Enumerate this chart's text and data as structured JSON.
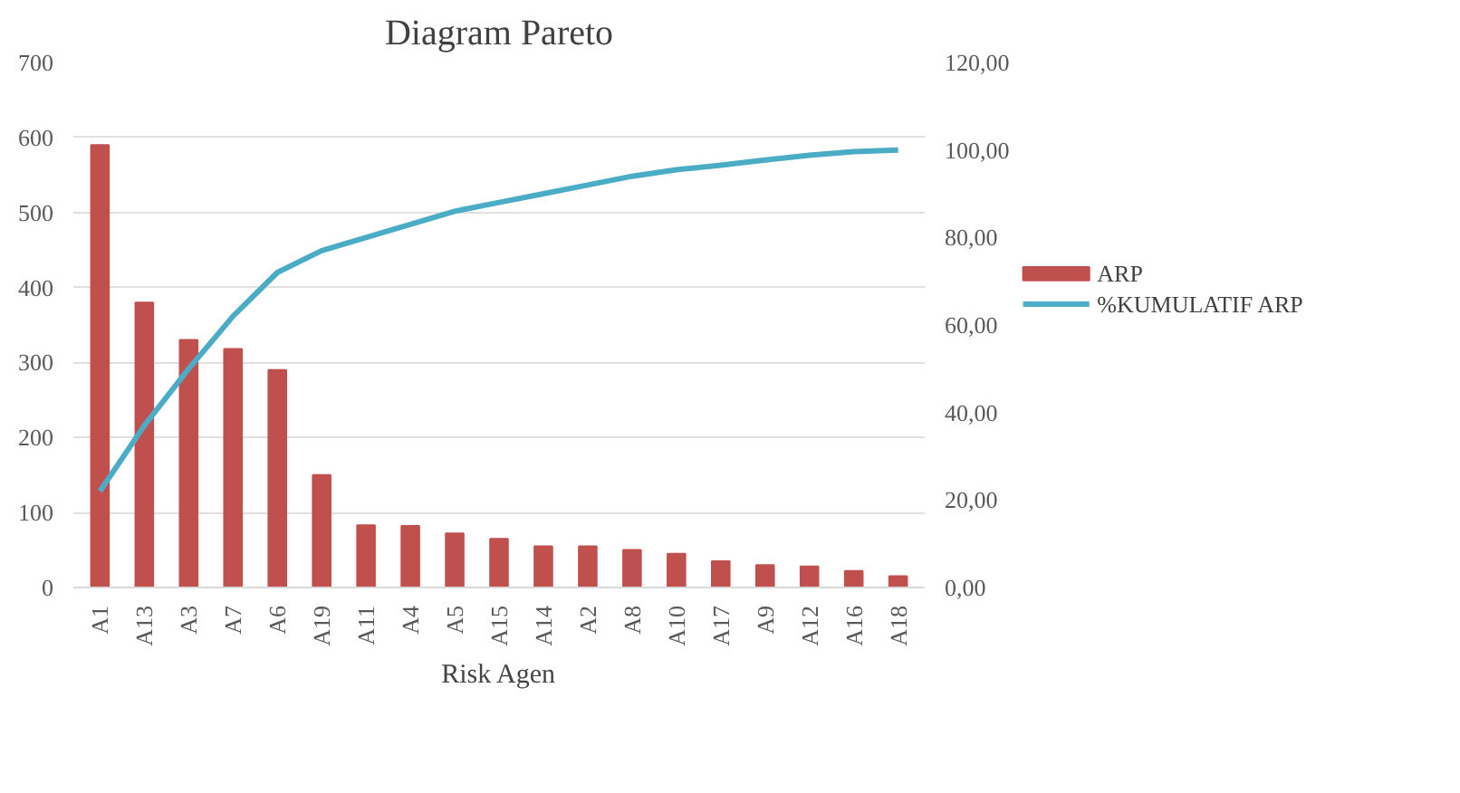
{
  "chart_data": {
    "type": "bar",
    "title": "Diagram Pareto",
    "xlabel": "Risk Agen",
    "categories": [
      "A1",
      "A13",
      "A3",
      "A7",
      "A6",
      "A19",
      "A11",
      "A4",
      "A5",
      "A15",
      "A14",
      "A2",
      "A8",
      "A10",
      "A17",
      "A9",
      "A12",
      "A16",
      "A18"
    ],
    "series": [
      {
        "name": "ARP",
        "color": "#c0504d",
        "type": "bar",
        "values": [
          590,
          380,
          330,
          318,
          290,
          150,
          83,
          82,
          72,
          65,
          55,
          55,
          50,
          45,
          35,
          30,
          28,
          22,
          15
        ]
      },
      {
        "name": "%KUMULATIF ARP",
        "color": "#4bacc6",
        "type": "line",
        "axis": "y2",
        "values": [
          22,
          37,
          50,
          62,
          72,
          77,
          80,
          83,
          86,
          88,
          90,
          92,
          94,
          95.5,
          96.5,
          97.7,
          98.8,
          99.6,
          100
        ]
      }
    ],
    "ylim": [
      0,
      700
    ],
    "yticks": [
      0,
      100,
      200,
      300,
      400,
      500,
      600,
      700
    ],
    "y2lim": [
      0,
      120
    ],
    "y2ticks": [
      {
        "value": 0,
        "label": "0,00"
      },
      {
        "value": 20,
        "label": "20,00"
      },
      {
        "value": 40,
        "label": "40,00"
      },
      {
        "value": 60,
        "label": "60,00"
      },
      {
        "value": 80,
        "label": "80,00"
      },
      {
        "value": 100,
        "label": "100,00"
      },
      {
        "value": 120,
        "label": "120,00"
      }
    ],
    "grid": "y",
    "legend": "right"
  }
}
